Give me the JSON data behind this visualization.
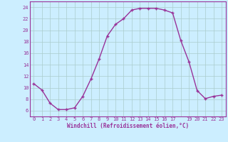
{
  "x": [
    0,
    1,
    2,
    3,
    4,
    5,
    6,
    7,
    8,
    9,
    10,
    11,
    12,
    13,
    14,
    15,
    16,
    17,
    18,
    19,
    20,
    21,
    22,
    23
  ],
  "y": [
    10.7,
    9.6,
    7.3,
    6.2,
    6.2,
    6.5,
    8.5,
    11.5,
    15.0,
    19.0,
    21.0,
    22.0,
    23.5,
    23.8,
    23.8,
    23.8,
    23.5,
    23.0,
    18.2,
    14.5,
    9.5,
    8.1,
    8.5,
    8.7
  ],
  "line_color": "#993399",
  "marker": "+",
  "marker_size": 3,
  "background_color": "#cceeff",
  "grid_color": "#aacccc",
  "xlabel": "Windchill (Refroidissement éolien,°C)",
  "xlabel_color": "#993399",
  "tick_color": "#993399",
  "axis_color": "#993399",
  "ylim": [
    5,
    25
  ],
  "xlim": [
    -0.5,
    23.5
  ],
  "yticks": [
    6,
    8,
    10,
    12,
    14,
    16,
    18,
    20,
    22,
    24
  ],
  "xticks": [
    0,
    1,
    2,
    3,
    4,
    5,
    6,
    7,
    8,
    9,
    10,
    11,
    12,
    13,
    14,
    15,
    16,
    17,
    18,
    19,
    20,
    21,
    22,
    23
  ],
  "xtick_labels": [
    "0",
    "1",
    "2",
    "3",
    "4",
    "5",
    "6",
    "7",
    "8",
    "9",
    "10",
    "11",
    "12",
    "13",
    "14",
    "15",
    "16",
    "17",
    "",
    "19",
    "20",
    "21",
    "22",
    "23"
  ],
  "line_width": 1.0,
  "font_size_ticks": 5.0,
  "font_size_xlabel": 5.5
}
